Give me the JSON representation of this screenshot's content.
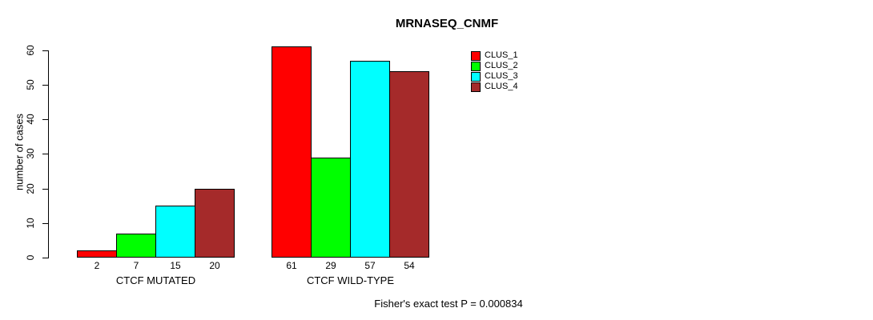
{
  "title": "MRNASEQ_CNMF",
  "footer": "Fisher's exact test P = 0.000834",
  "chart_data": {
    "type": "bar",
    "title": "MRNASEQ_CNMF",
    "xlabel": "",
    "ylabel": "number of cases",
    "categories": [
      "CTCF MUTATED",
      "CTCF WILD-TYPE"
    ],
    "series": [
      {
        "name": "CLUS_1",
        "color": "#FF0000",
        "values": [
          2,
          61
        ]
      },
      {
        "name": "CLUS_2",
        "color": "#00FF00",
        "values": [
          7,
          29
        ]
      },
      {
        "name": "CLUS_3",
        "color": "#00FFFF",
        "values": [
          15,
          57
        ]
      },
      {
        "name": "CLUS_4",
        "color": "#A52A2A",
        "values": [
          20,
          54
        ]
      }
    ],
    "bar_value_labels": [
      [
        "2",
        "7",
        "15",
        "20"
      ],
      [
        "61",
        "29",
        "57",
        "54"
      ]
    ],
    "yticks": [
      0,
      10,
      20,
      30,
      40,
      50,
      60
    ],
    "ylim": [
      0,
      60
    ],
    "grid": false,
    "legend_position": "right-of-plot",
    "legend_entries": [
      "CLUS_1",
      "CLUS_2",
      "CLUS_3",
      "CLUS_4"
    ],
    "annotation": "Fisher's exact test P = 0.000834",
    "bar_border_color": "#000000"
  }
}
